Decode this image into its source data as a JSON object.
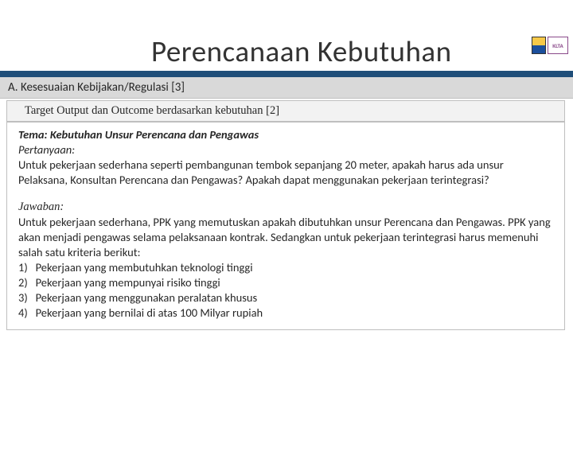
{
  "logos": {
    "label2": "KLTA"
  },
  "title": "Perencanaan Kebutuhan",
  "section_header": "A. Kesesuaian Kebijakan/Regulasi [3]",
  "sub_header": "Target Output dan Outcome berdasarkan kebutuhan [2]",
  "content": {
    "theme_label": "Tema:",
    "theme_text": "Kebutuhan Unsur Perencana dan Pengawas",
    "question_label": "Pertanyaan:",
    "question_text": "Untuk pekerjaan sederhana seperti pembangunan tembok sepanjang 20 meter, apakah harus ada unsur Pelaksana, Konsultan Perencana dan Pengawas? Apakah dapat menggunakan pekerjaan terintegrasi?",
    "answer_label": "Jawaban:",
    "answer_intro": "Untuk pekerjaan sederhana, PPK yang memutuskan apakah dibutuhkan unsur Perencana dan Pengawas. PPK yang akan menjadi pengawas selama pelaksanaan kontrak. Sedangkan untuk pekerjaan terintegrasi harus memenuhi salah satu kriteria berikut:",
    "criteria": [
      "Pekerjaan yang membutuhkan teknologi tinggi",
      "Pekerjaan yang mempunyai risiko tinggi",
      "Pekerjaan yang menggunakan peralatan khusus",
      "Pekerjaan yang bernilai di atas 100 Milyar rupiah"
    ]
  },
  "colors": {
    "title_underline": "#1f4e79",
    "section_bg": "#d9d9d9",
    "subheader_bg": "#f2f2f2",
    "border": "#bfbfbf",
    "text": "#262626"
  }
}
